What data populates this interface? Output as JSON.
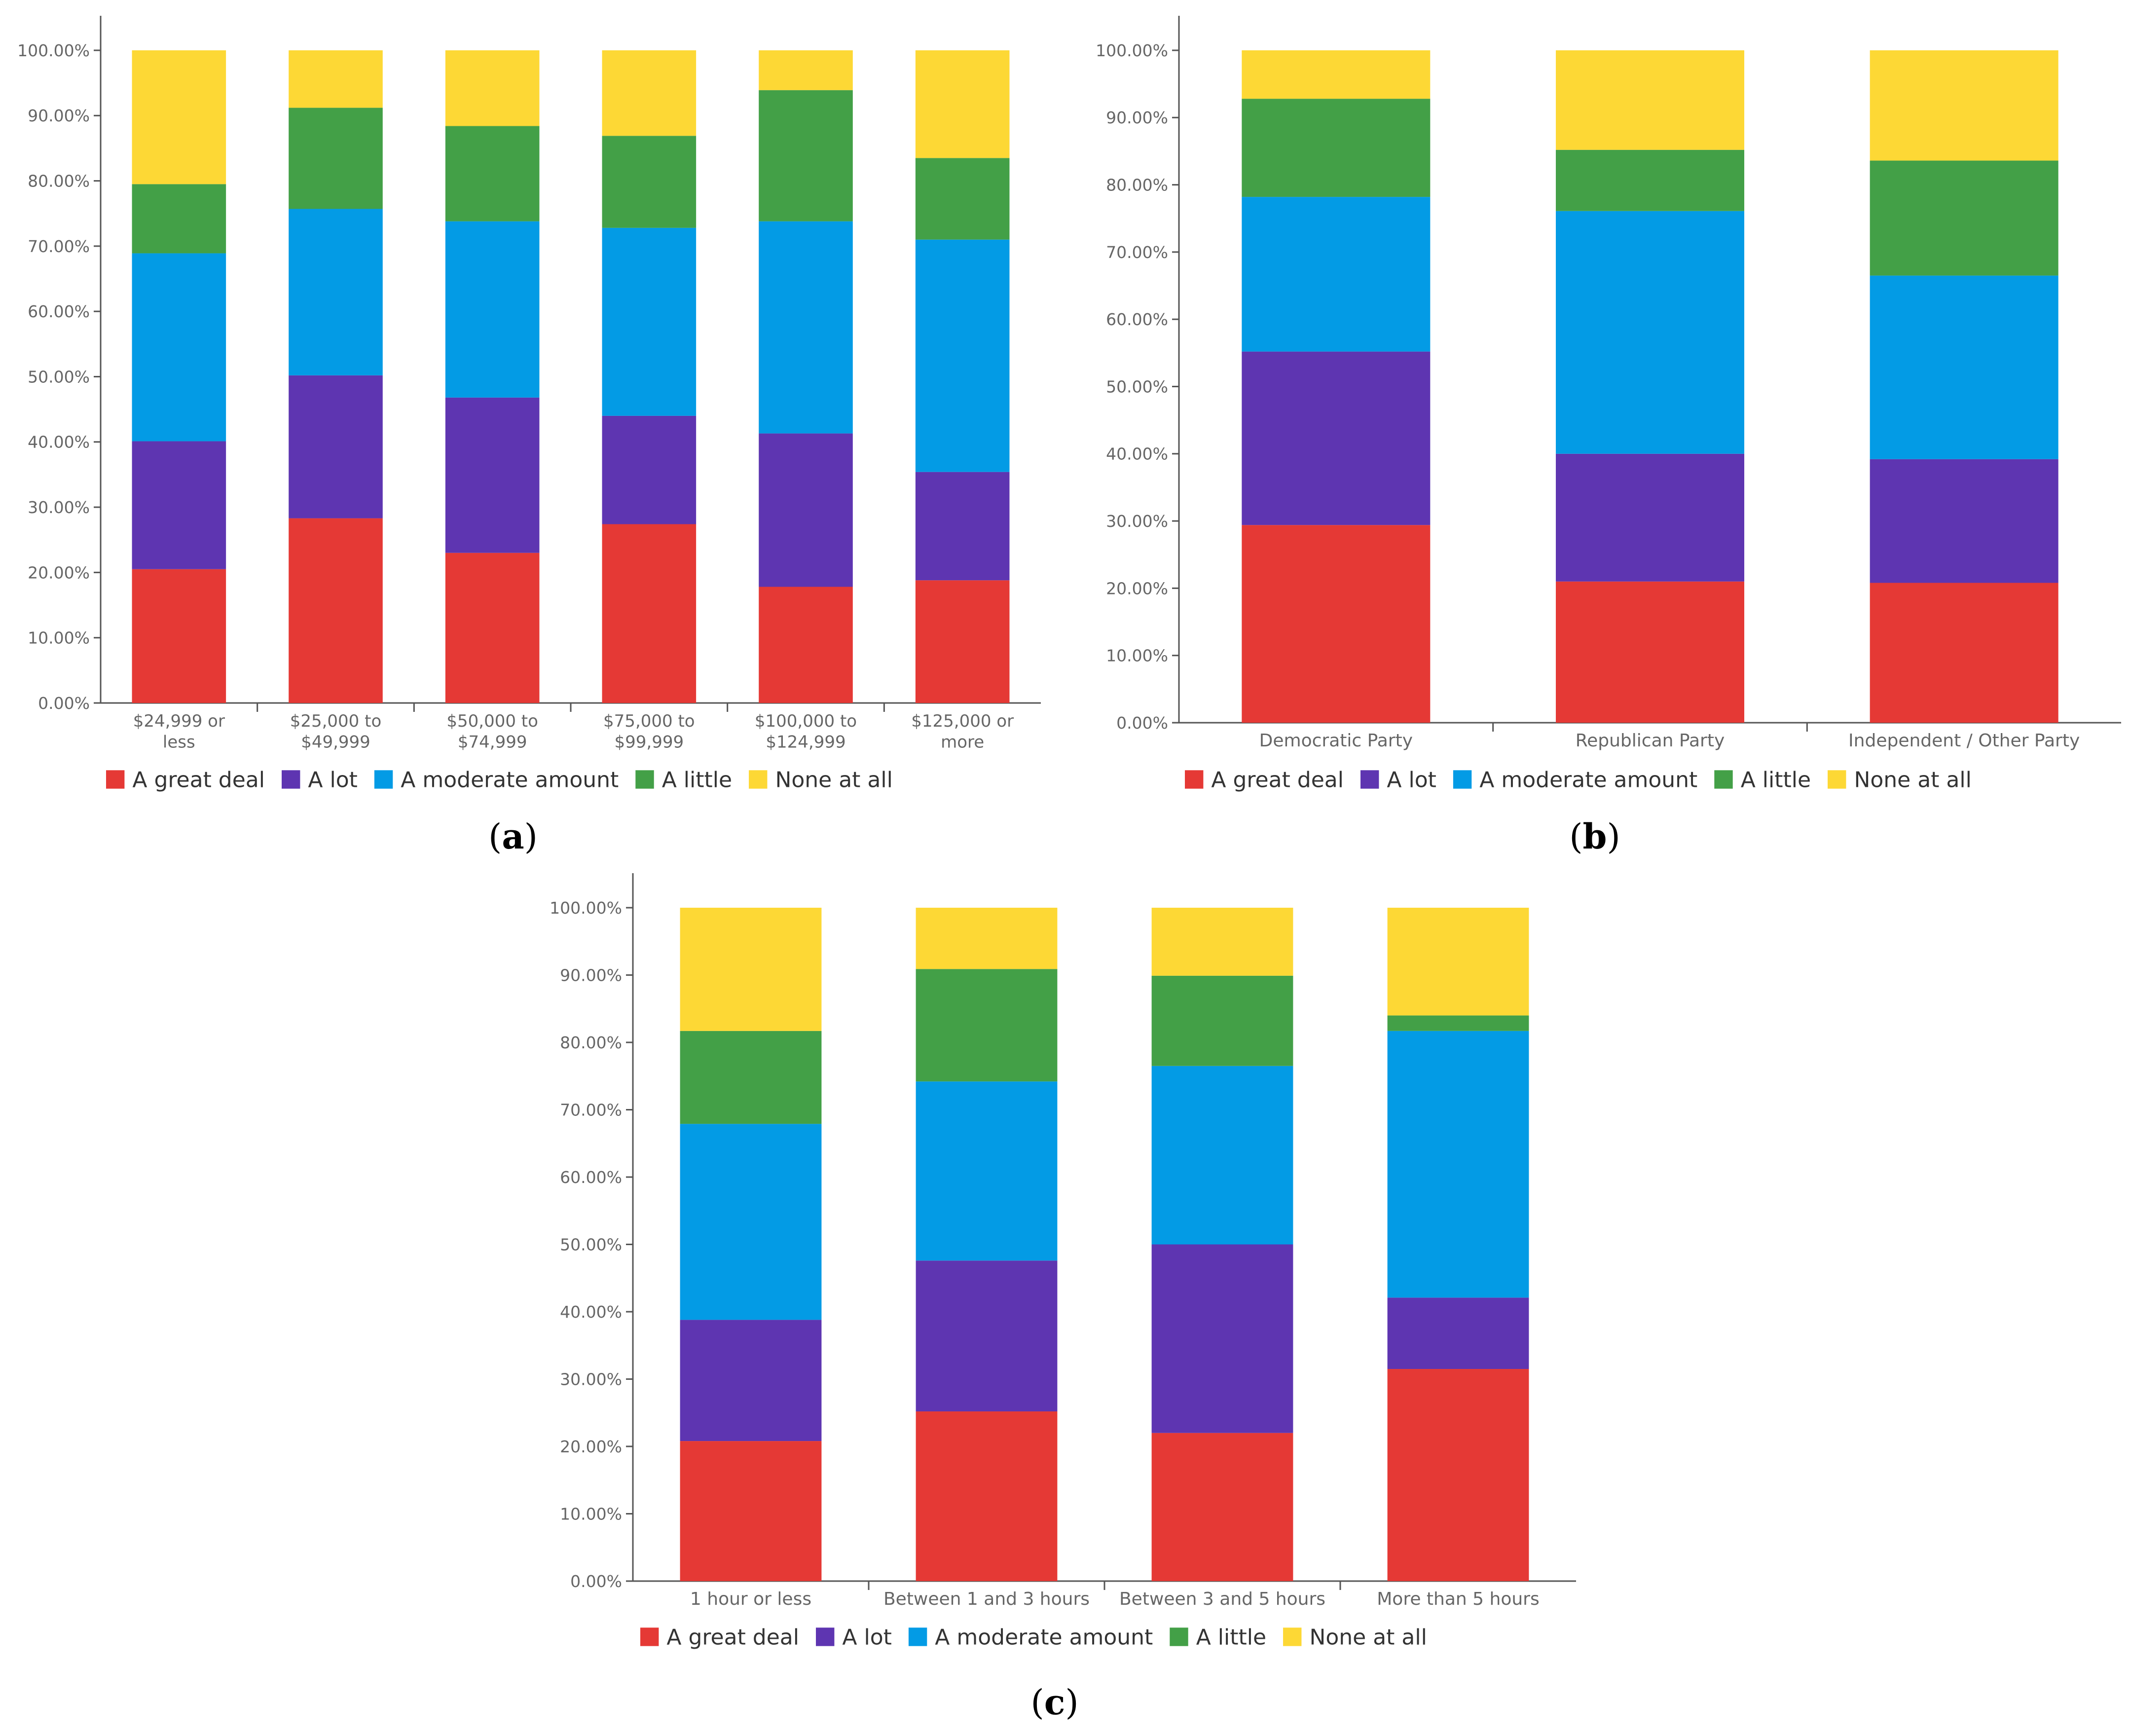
{
  "chart_data": [
    {
      "id": "a",
      "type": "bar",
      "stacked": true,
      "caption": "a",
      "categories": [
        [
          "$24,999 or",
          "less"
        ],
        [
          "$25,000 to",
          "$49,999"
        ],
        [
          "$50,000 to",
          "$74,999"
        ],
        [
          "$75,000 to",
          "$99,999"
        ],
        [
          "$100,000 to",
          "$124,999"
        ],
        [
          "$125,000 or",
          "more"
        ]
      ],
      "ylim": [
        0,
        100
      ],
      "yticks": [
        "0.00%",
        "10.00%",
        "20.00%",
        "30.00%",
        "40.00%",
        "50.00%",
        "60.00%",
        "70.00%",
        "80.00%",
        "90.00%",
        "100.00%"
      ],
      "series": [
        {
          "name": "A great deal",
          "color": "#e53935",
          "values": [
            20.5,
            28.3,
            23.0,
            27.4,
            17.8,
            18.8
          ]
        },
        {
          "name": "A lot",
          "color": "#5e35b1",
          "values": [
            19.6,
            21.9,
            23.8,
            16.6,
            23.5,
            16.6
          ]
        },
        {
          "name": "A moderate amount",
          "color": "#039be5",
          "values": [
            28.8,
            25.5,
            27.0,
            28.8,
            32.5,
            35.6
          ]
        },
        {
          "name": "A little",
          "color": "#43a047",
          "values": [
            10.6,
            15.5,
            14.6,
            14.1,
            20.1,
            12.5
          ]
        },
        {
          "name": "None at all",
          "color": "#fdd835",
          "values": [
            20.5,
            8.8,
            11.6,
            13.1,
            6.1,
            16.5
          ]
        }
      ],
      "legend": "bottom-left",
      "grid": false
    },
    {
      "id": "b",
      "type": "bar",
      "stacked": true,
      "caption": "b",
      "categories": [
        [
          "Democratic Party"
        ],
        [
          "Republican Party"
        ],
        [
          "Independent / Other Party"
        ]
      ],
      "ylim": [
        0,
        100
      ],
      "yticks": [
        "0.00%",
        "10.00%",
        "20.00%",
        "30.00%",
        "40.00%",
        "50.00%",
        "60.00%",
        "70.00%",
        "80.00%",
        "90.00%",
        "100.00%"
      ],
      "series": [
        {
          "name": "A great deal",
          "color": "#e53935",
          "values": [
            29.4,
            21.0,
            20.8
          ]
        },
        {
          "name": "A lot",
          "color": "#5e35b1",
          "values": [
            25.8,
            19.0,
            18.4
          ]
        },
        {
          "name": "A moderate amount",
          "color": "#039be5",
          "values": [
            23.0,
            36.1,
            27.3
          ]
        },
        {
          "name": "A little",
          "color": "#43a047",
          "values": [
            14.6,
            9.1,
            17.1
          ]
        },
        {
          "name": "None at all",
          "color": "#fdd835",
          "values": [
            7.2,
            14.8,
            16.4
          ]
        }
      ],
      "legend": "bottom-left",
      "grid": false
    },
    {
      "id": "c",
      "type": "bar",
      "stacked": true,
      "caption": "c",
      "categories": [
        [
          "1 hour or less"
        ],
        [
          "Between 1 and 3 hours"
        ],
        [
          "Between 3 and 5 hours"
        ],
        [
          "More than 5 hours"
        ]
      ],
      "ylim": [
        0,
        100
      ],
      "yticks": [
        "0.00%",
        "10.00%",
        "20.00%",
        "30.00%",
        "40.00%",
        "50.00%",
        "60.00%",
        "70.00%",
        "80.00%",
        "90.00%",
        "100.00%"
      ],
      "series": [
        {
          "name": "A great deal",
          "color": "#e53935",
          "values": [
            20.8,
            25.2,
            22.0,
            31.5
          ]
        },
        {
          "name": "A lot",
          "color": "#5e35b1",
          "values": [
            18.0,
            22.4,
            28.0,
            10.6
          ]
        },
        {
          "name": "A moderate amount",
          "color": "#039be5",
          "values": [
            29.1,
            26.6,
            26.5,
            39.6
          ]
        },
        {
          "name": "A little",
          "color": "#43a047",
          "values": [
            13.8,
            16.7,
            13.4,
            2.3
          ]
        },
        {
          "name": "None at all",
          "color": "#fdd835",
          "values": [
            18.3,
            9.1,
            10.1,
            16.0
          ]
        }
      ],
      "legend": "bottom-left",
      "grid": false
    }
  ]
}
